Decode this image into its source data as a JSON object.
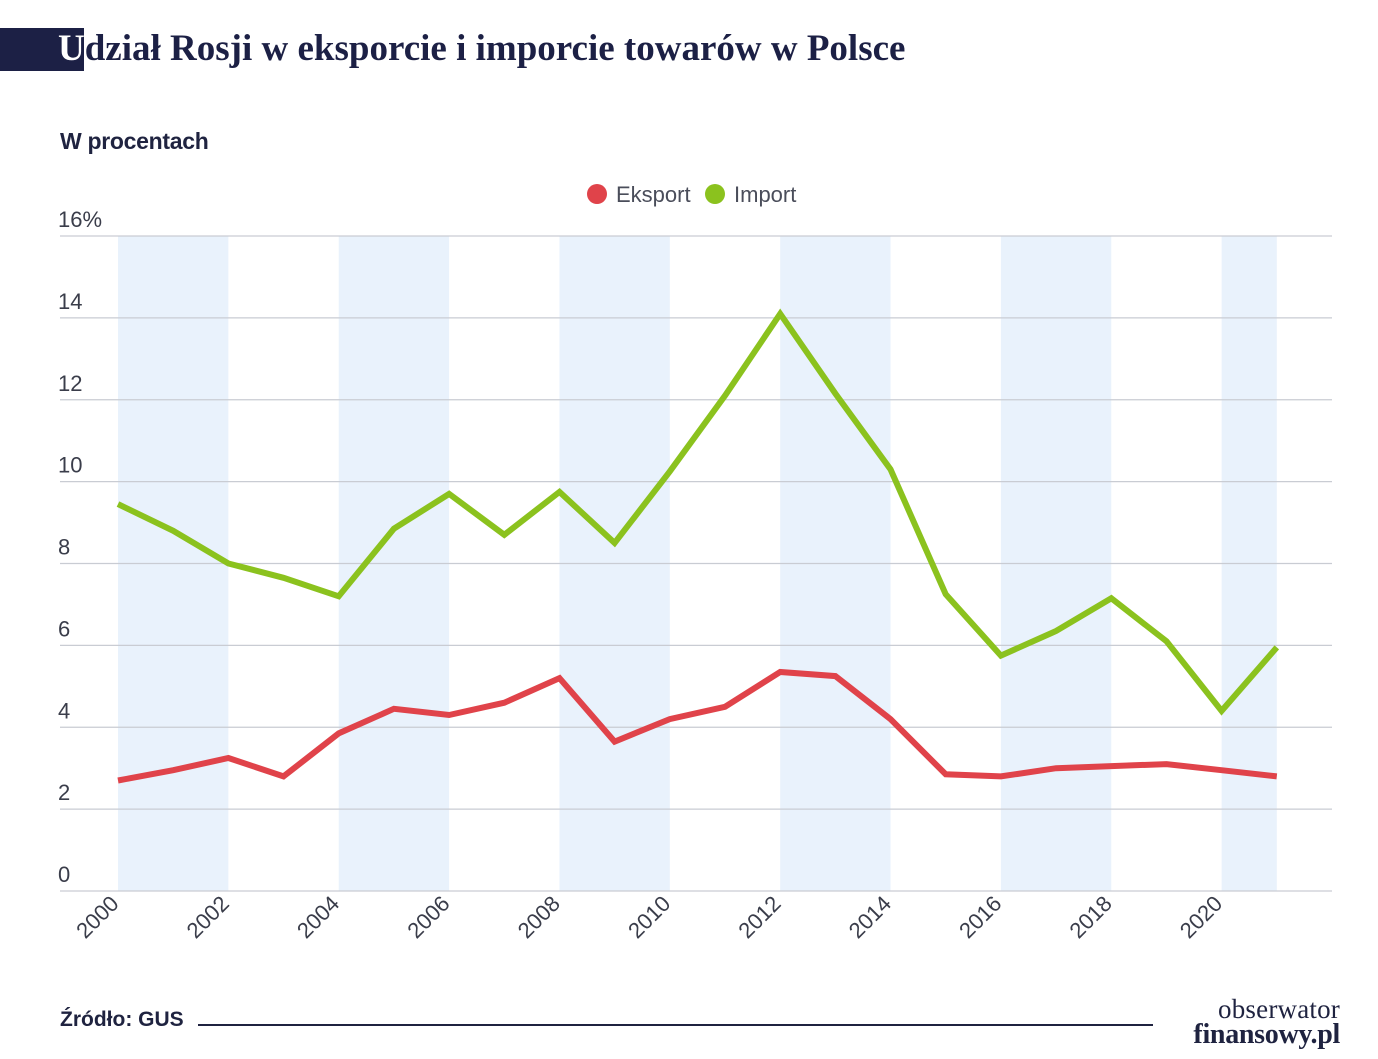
{
  "header": {
    "title_first_letter": "U",
    "title_rest": "dział Rosji w eksporcie i imporcie towarów w Polsce",
    "subtitle": "W procentach"
  },
  "footer": {
    "source": "Źródło: GUS",
    "logo_line1": "obserwator",
    "logo_line2": "finansowy.pl"
  },
  "chart_data": {
    "type": "line",
    "title": "Udział Rosji w eksporcie i imporcie towarów w Polsce",
    "subtitle": "W procentach",
    "xlabel": "",
    "ylabel": "",
    "x": [
      2000,
      2001,
      2002,
      2003,
      2004,
      2005,
      2006,
      2007,
      2008,
      2009,
      2010,
      2011,
      2012,
      2013,
      2014,
      2015,
      2016,
      2017,
      2018,
      2019,
      2020,
      2021
    ],
    "x_tick_labels": [
      "2000",
      "2002",
      "2004",
      "2006",
      "2008",
      "2010",
      "2012",
      "2014",
      "2016",
      "2018",
      "2020"
    ],
    "y_tick_labels": [
      "0",
      "2",
      "4",
      "6",
      "8",
      "10",
      "12",
      "14",
      "16%"
    ],
    "y_ticks": [
      0,
      2,
      4,
      6,
      8,
      10,
      12,
      14,
      16
    ],
    "ylim": [
      0,
      16
    ],
    "grid": true,
    "legend_position": "top-center",
    "shaded_bands": [
      [
        2000,
        2002
      ],
      [
        2004,
        2006
      ],
      [
        2008,
        2010
      ],
      [
        2012,
        2014
      ],
      [
        2016,
        2018
      ],
      [
        2020,
        2021
      ]
    ],
    "colors": {
      "band": "#e9f2fc",
      "grid": "#c9ccd3",
      "axis_text": "#3a3d4a"
    },
    "series": [
      {
        "name": "Eksport",
        "color": "#e0434a",
        "values": [
          2.7,
          2.95,
          3.25,
          2.8,
          3.85,
          4.45,
          4.3,
          4.6,
          5.2,
          3.65,
          4.2,
          4.5,
          5.35,
          5.25,
          4.2,
          2.85,
          2.8,
          3.0,
          3.05,
          3.1,
          2.95,
          2.8
        ]
      },
      {
        "name": "Import",
        "color": "#8bc21e",
        "values": [
          9.45,
          8.8,
          8.0,
          7.65,
          7.2,
          8.85,
          9.7,
          8.7,
          9.75,
          8.5,
          10.25,
          12.1,
          14.1,
          12.15,
          10.3,
          7.25,
          5.75,
          6.35,
          7.15,
          6.1,
          4.4,
          5.95
        ]
      }
    ]
  }
}
